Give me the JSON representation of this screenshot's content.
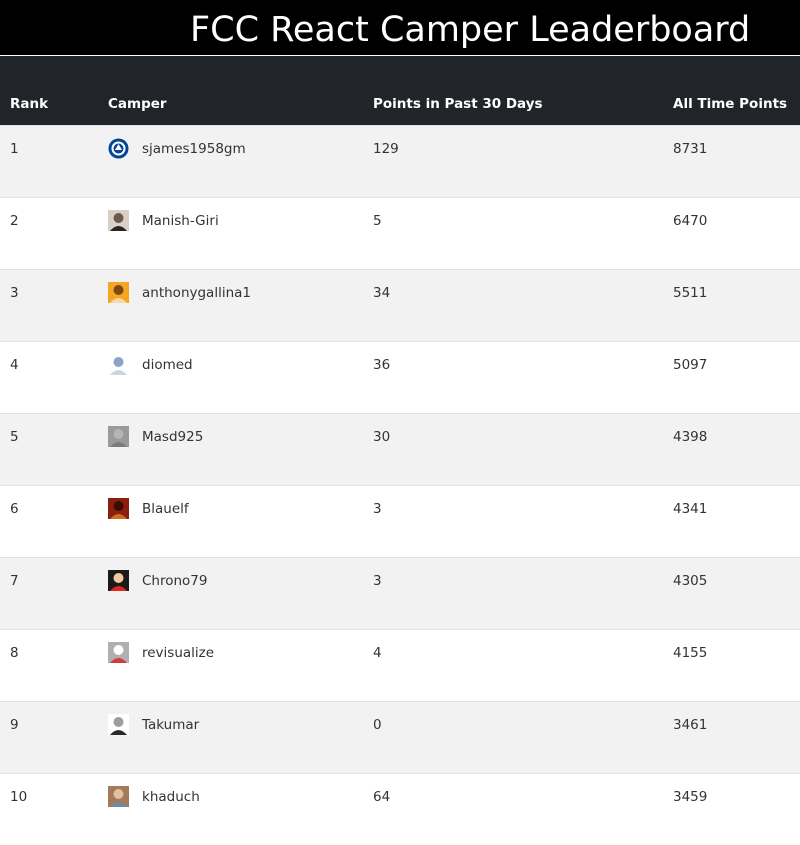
{
  "header": {
    "title": "FCC React Camper Leaderboard"
  },
  "table": {
    "columns": {
      "rank": "Rank",
      "camper": "Camper",
      "recent": "Points in Past 30 Days",
      "alltime": "All Time Points"
    },
    "rows": [
      {
        "rank": "1",
        "username": "sjames1958gm",
        "recent": "129",
        "alltime": "8731",
        "avatar": "chelsea-crest",
        "colors": [
          "#ffffff",
          "#034694",
          "#ffffff"
        ]
      },
      {
        "rank": "2",
        "username": "Manish-Giri",
        "recent": "5",
        "alltime": "6470",
        "avatar": "person-dark",
        "colors": [
          "#d8d0c4",
          "#2a2421",
          "#6b5a4c"
        ]
      },
      {
        "rank": "3",
        "username": "anthonygallina1",
        "recent": "34",
        "alltime": "5511",
        "avatar": "cartoon-face",
        "colors": [
          "#f5a623",
          "#f3d9b1",
          "#7a4a12"
        ]
      },
      {
        "rank": "4",
        "username": "diomed",
        "recent": "36",
        "alltime": "5097",
        "avatar": "figure-light",
        "colors": [
          "#ffffff",
          "#c9d6e8",
          "#8aa4c8"
        ]
      },
      {
        "rank": "5",
        "username": "Masd925",
        "recent": "30",
        "alltime": "4398",
        "avatar": "gray-photo",
        "colors": [
          "#9a9a9a",
          "#7c7c7c",
          "#b5b5b5"
        ]
      },
      {
        "rank": "6",
        "username": "Blauelf",
        "recent": "3",
        "alltime": "4341",
        "avatar": "red-portrait",
        "colors": [
          "#8b1f0e",
          "#d2691e",
          "#3b0b04"
        ]
      },
      {
        "rank": "7",
        "username": "Chrono79",
        "recent": "3",
        "alltime": "4305",
        "avatar": "anime-red-hair",
        "colors": [
          "#1a1a1a",
          "#d9281f",
          "#f0c9a0"
        ]
      },
      {
        "rank": "8",
        "username": "revisualize",
        "recent": "4",
        "alltime": "4155",
        "avatar": "red-badge",
        "colors": [
          "#b0b0b0",
          "#d33b3b",
          "#ffffff"
        ]
      },
      {
        "rank": "9",
        "username": "Takumar",
        "recent": "0",
        "alltime": "3461",
        "avatar": "bw-portrait",
        "colors": [
          "#ffffff",
          "#2b2b2b",
          "#9d9d9d"
        ]
      },
      {
        "rank": "10",
        "username": "khaduch",
        "recent": "64",
        "alltime": "3459",
        "avatar": "photo-portrait",
        "colors": [
          "#a47a5a",
          "#6d8aa8",
          "#e3c19e"
        ]
      }
    ]
  }
}
